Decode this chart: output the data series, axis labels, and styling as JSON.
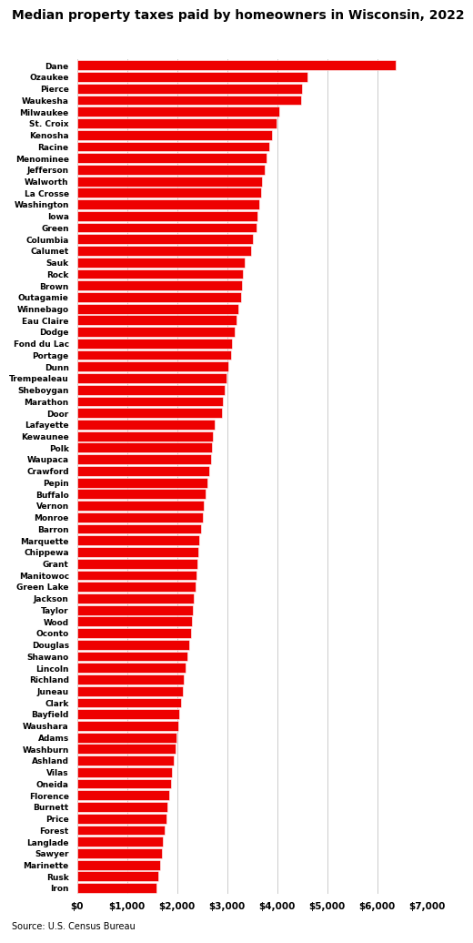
{
  "title": "Median property taxes paid by homeowners in Wisconsin, 2022",
  "source": "Source: U.S. Census Bureau",
  "bar_color": "#ee0000",
  "background_color": "#ffffff",
  "xlim": [
    0,
    7000
  ],
  "xticks": [
    0,
    1000,
    2000,
    3000,
    4000,
    5000,
    6000,
    7000
  ],
  "xtick_labels": [
    "$0",
    "$1,000",
    "$2,000",
    "$3,000",
    "$4,000",
    "$5,000",
    "$6,000",
    "$7,000"
  ],
  "counties": [
    "Dane",
    "Ozaukee",
    "Pierce",
    "Waukesha",
    "Milwaukee",
    "St. Croix",
    "Kenosha",
    "Racine",
    "Menominee",
    "Jefferson",
    "Walworth",
    "La Crosse",
    "Washington",
    "Iowa",
    "Green",
    "Columbia",
    "Calumet",
    "Sauk",
    "Rock",
    "Brown",
    "Outagamie",
    "Winnebago",
    "Eau Claire",
    "Dodge",
    "Fond du Lac",
    "Portage",
    "Dunn",
    "Trempealeau",
    "Sheboygan",
    "Marathon",
    "Door",
    "Lafayette",
    "Kewaunee",
    "Polk",
    "Waupaca",
    "Crawford",
    "Pepin",
    "Buffalo",
    "Vernon",
    "Monroe",
    "Barron",
    "Marquette",
    "Chippewa",
    "Grant",
    "Manitowoc",
    "Green Lake",
    "Jackson",
    "Taylor",
    "Wood",
    "Oconto",
    "Douglas",
    "Shawano",
    "Lincoln",
    "Richland",
    "Juneau",
    "Clark",
    "Bayfield",
    "Waushara",
    "Adams",
    "Washburn",
    "Ashland",
    "Vilas",
    "Oneida",
    "Florence",
    "Burnett",
    "Price",
    "Forest",
    "Langlade",
    "Sawyer",
    "Marinette",
    "Rusk",
    "Iron"
  ],
  "values": [
    6365,
    4600,
    4500,
    4470,
    4050,
    3980,
    3900,
    3850,
    3780,
    3750,
    3700,
    3680,
    3650,
    3600,
    3580,
    3520,
    3480,
    3350,
    3320,
    3300,
    3280,
    3230,
    3180,
    3150,
    3100,
    3070,
    3020,
    2980,
    2960,
    2920,
    2900,
    2750,
    2720,
    2700,
    2680,
    2650,
    2600,
    2570,
    2540,
    2510,
    2470,
    2450,
    2430,
    2410,
    2390,
    2370,
    2330,
    2310,
    2290,
    2270,
    2250,
    2200,
    2170,
    2140,
    2110,
    2080,
    2050,
    2020,
    1990,
    1960,
    1930,
    1900,
    1870,
    1840,
    1810,
    1780,
    1750,
    1720,
    1690,
    1660,
    1630,
    1580
  ]
}
